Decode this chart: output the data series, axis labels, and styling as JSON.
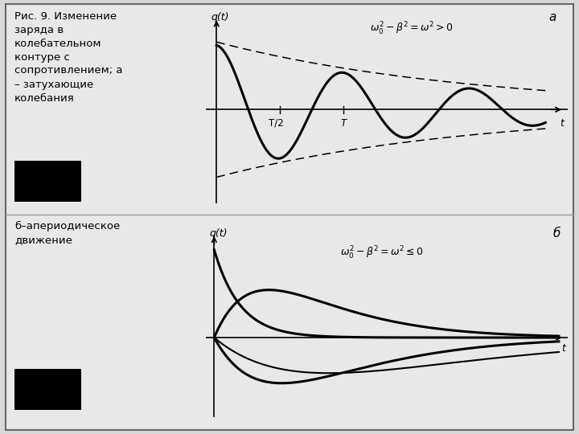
{
  "background_color": "#d8d8d8",
  "inner_background": "#e8e8e8",
  "border_color": "#666666",
  "text_left_top": "Рис. 9. Изменение\nзаряда в\nколебательном\nконтуре с\nсопротивлением; а\n– затухающие\nколебания",
  "text_left_bottom": "б–апериодическое\nдвижение",
  "label_a": "а",
  "label_b": "б",
  "eq_top": "$\\omega_0^2 - \\beta^2 = \\omega^2 > 0$",
  "eq_bottom": "$\\omega_0^2 - \\beta^2 = \\omega^2 \\leq 0$",
  "qt_label": "q(t)",
  "t_label": "t",
  "T_half_label": "T/2",
  "T_label": "T"
}
